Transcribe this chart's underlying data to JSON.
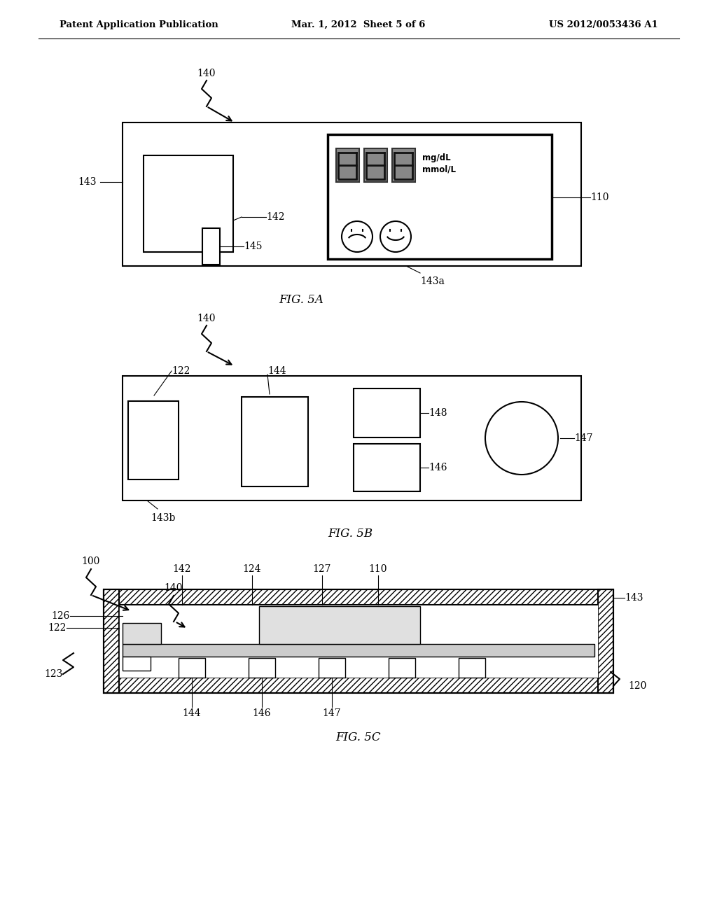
{
  "header_left": "Patent Application Publication",
  "header_mid": "Mar. 1, 2012  Sheet 5 of 6",
  "header_right": "US 2012/0053436 A1",
  "bg_color": "#ffffff",
  "line_color": "#000000"
}
